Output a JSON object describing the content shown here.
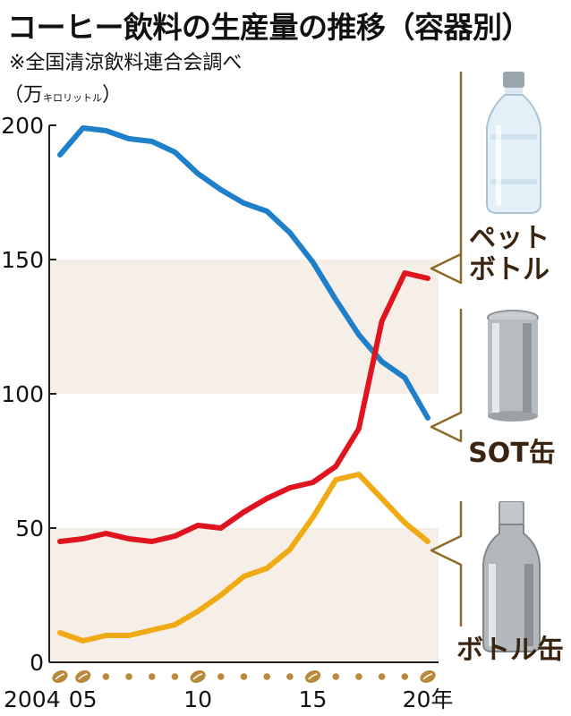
{
  "title": "コーヒー飲料の生産量の推移（容器別）",
  "source": "※全国清涼飲料連合会調べ",
  "unit": {
    "open": "（万",
    "small": "キロリットル",
    "close": "）"
  },
  "colors": {
    "pet": "#1f7fc8",
    "sot": "#f0aa14",
    "bottle": "#e0141e",
    "band": "#f6efe7",
    "axis": "#222222",
    "bracket": "#8c6a2a",
    "dot": "#b98a3c"
  },
  "labels": {
    "pet_line1": "ペット",
    "pet_line2": "ボトル",
    "sot": "SOT缶",
    "bottle": "ボトル缶"
  },
  "chart_data": {
    "type": "line",
    "title": "コーヒー飲料の生産量の推移（容器別）",
    "xlabel": "",
    "ylabel": "万キロリットル",
    "x": [
      2004,
      2005,
      2006,
      2007,
      2008,
      2009,
      2010,
      2011,
      2012,
      2013,
      2014,
      2015,
      2016,
      2017,
      2018,
      2019,
      2020
    ],
    "x_tick_labels": [
      {
        "x": 2004,
        "label": "2004"
      },
      {
        "x": 2005,
        "label": "05"
      },
      {
        "x": 2010,
        "label": "10"
      },
      {
        "x": 2015,
        "label": "15"
      },
      {
        "x": 2020,
        "label": "20年"
      }
    ],
    "y_ticks": [
      0,
      50,
      100,
      150,
      200
    ],
    "ylim": [
      0,
      200
    ],
    "series": [
      {
        "name": "ペットボトル",
        "key": "pet",
        "values": [
          189,
          199,
          198,
          195,
          194,
          190,
          182,
          176,
          171,
          168,
          160,
          149,
          135,
          122,
          112,
          106,
          91
        ]
      },
      {
        "name": "ボトル",
        "key": "bottle",
        "values": [
          45,
          46,
          48,
          46,
          45,
          47,
          51,
          50,
          56,
          61,
          65,
          67,
          73,
          87,
          127,
          145,
          143
        ]
      },
      {
        "name": "SOT缶",
        "key": "sot",
        "values": [
          11,
          8,
          10,
          10,
          12,
          14,
          19,
          25,
          32,
          35,
          42,
          54,
          68,
          70,
          61,
          52,
          45
        ]
      }
    ],
    "bean_years": [
      2004,
      2005,
      2010,
      2015,
      2020
    ],
    "grid": false,
    "bands": [
      [
        100,
        150
      ],
      [
        0,
        50
      ]
    ]
  }
}
